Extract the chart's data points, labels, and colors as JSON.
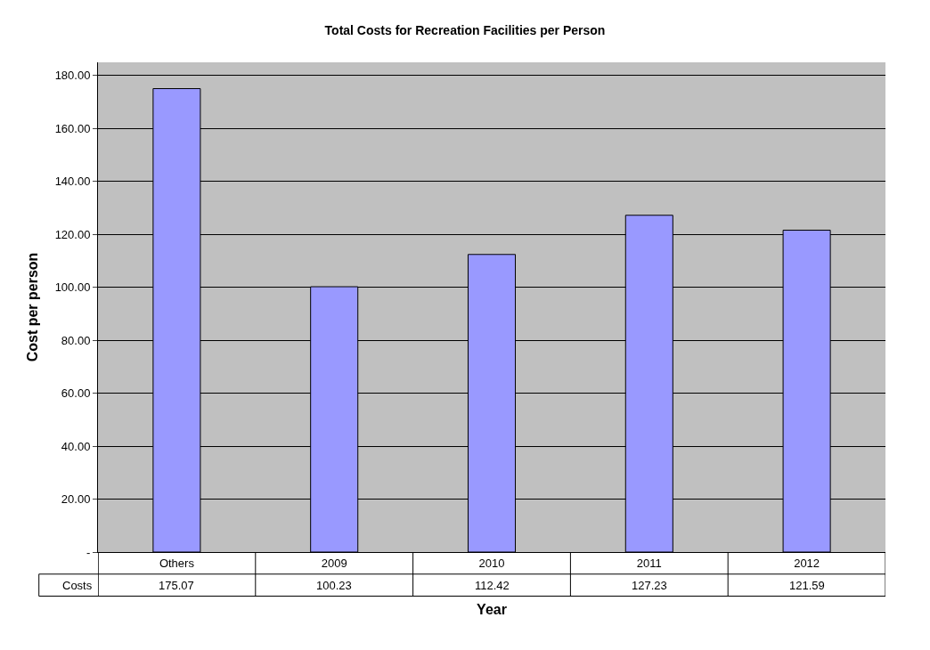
{
  "chart_data": {
    "type": "bar",
    "title": "Total Costs for Recreation Facilities per Person",
    "xlabel": "Year",
    "ylabel": "Cost per person",
    "categories": [
      "Others",
      "2009",
      "2010",
      "2011",
      "2012"
    ],
    "series": [
      {
        "name": "Costs",
        "color": "#9999ff",
        "values": [
          175.07,
          100.23,
          112.42,
          127.23,
          121.59
        ]
      }
    ],
    "ylim": [
      0,
      185
    ],
    "yticks": [
      {
        "value": 0,
        "label": "-"
      },
      {
        "value": 20,
        "label": "20.00"
      },
      {
        "value": 40,
        "label": "40.00"
      },
      {
        "value": 60,
        "label": "60.00"
      },
      {
        "value": 80,
        "label": "80.00"
      },
      {
        "value": 100,
        "label": "100.00"
      },
      {
        "value": 120,
        "label": "120.00"
      },
      {
        "value": 140,
        "label": "140.00"
      },
      {
        "value": 160,
        "label": "160.00"
      },
      {
        "value": 180,
        "label": "180.00"
      }
    ],
    "grid": "y",
    "legend": "bottom left",
    "data_labels": true
  }
}
